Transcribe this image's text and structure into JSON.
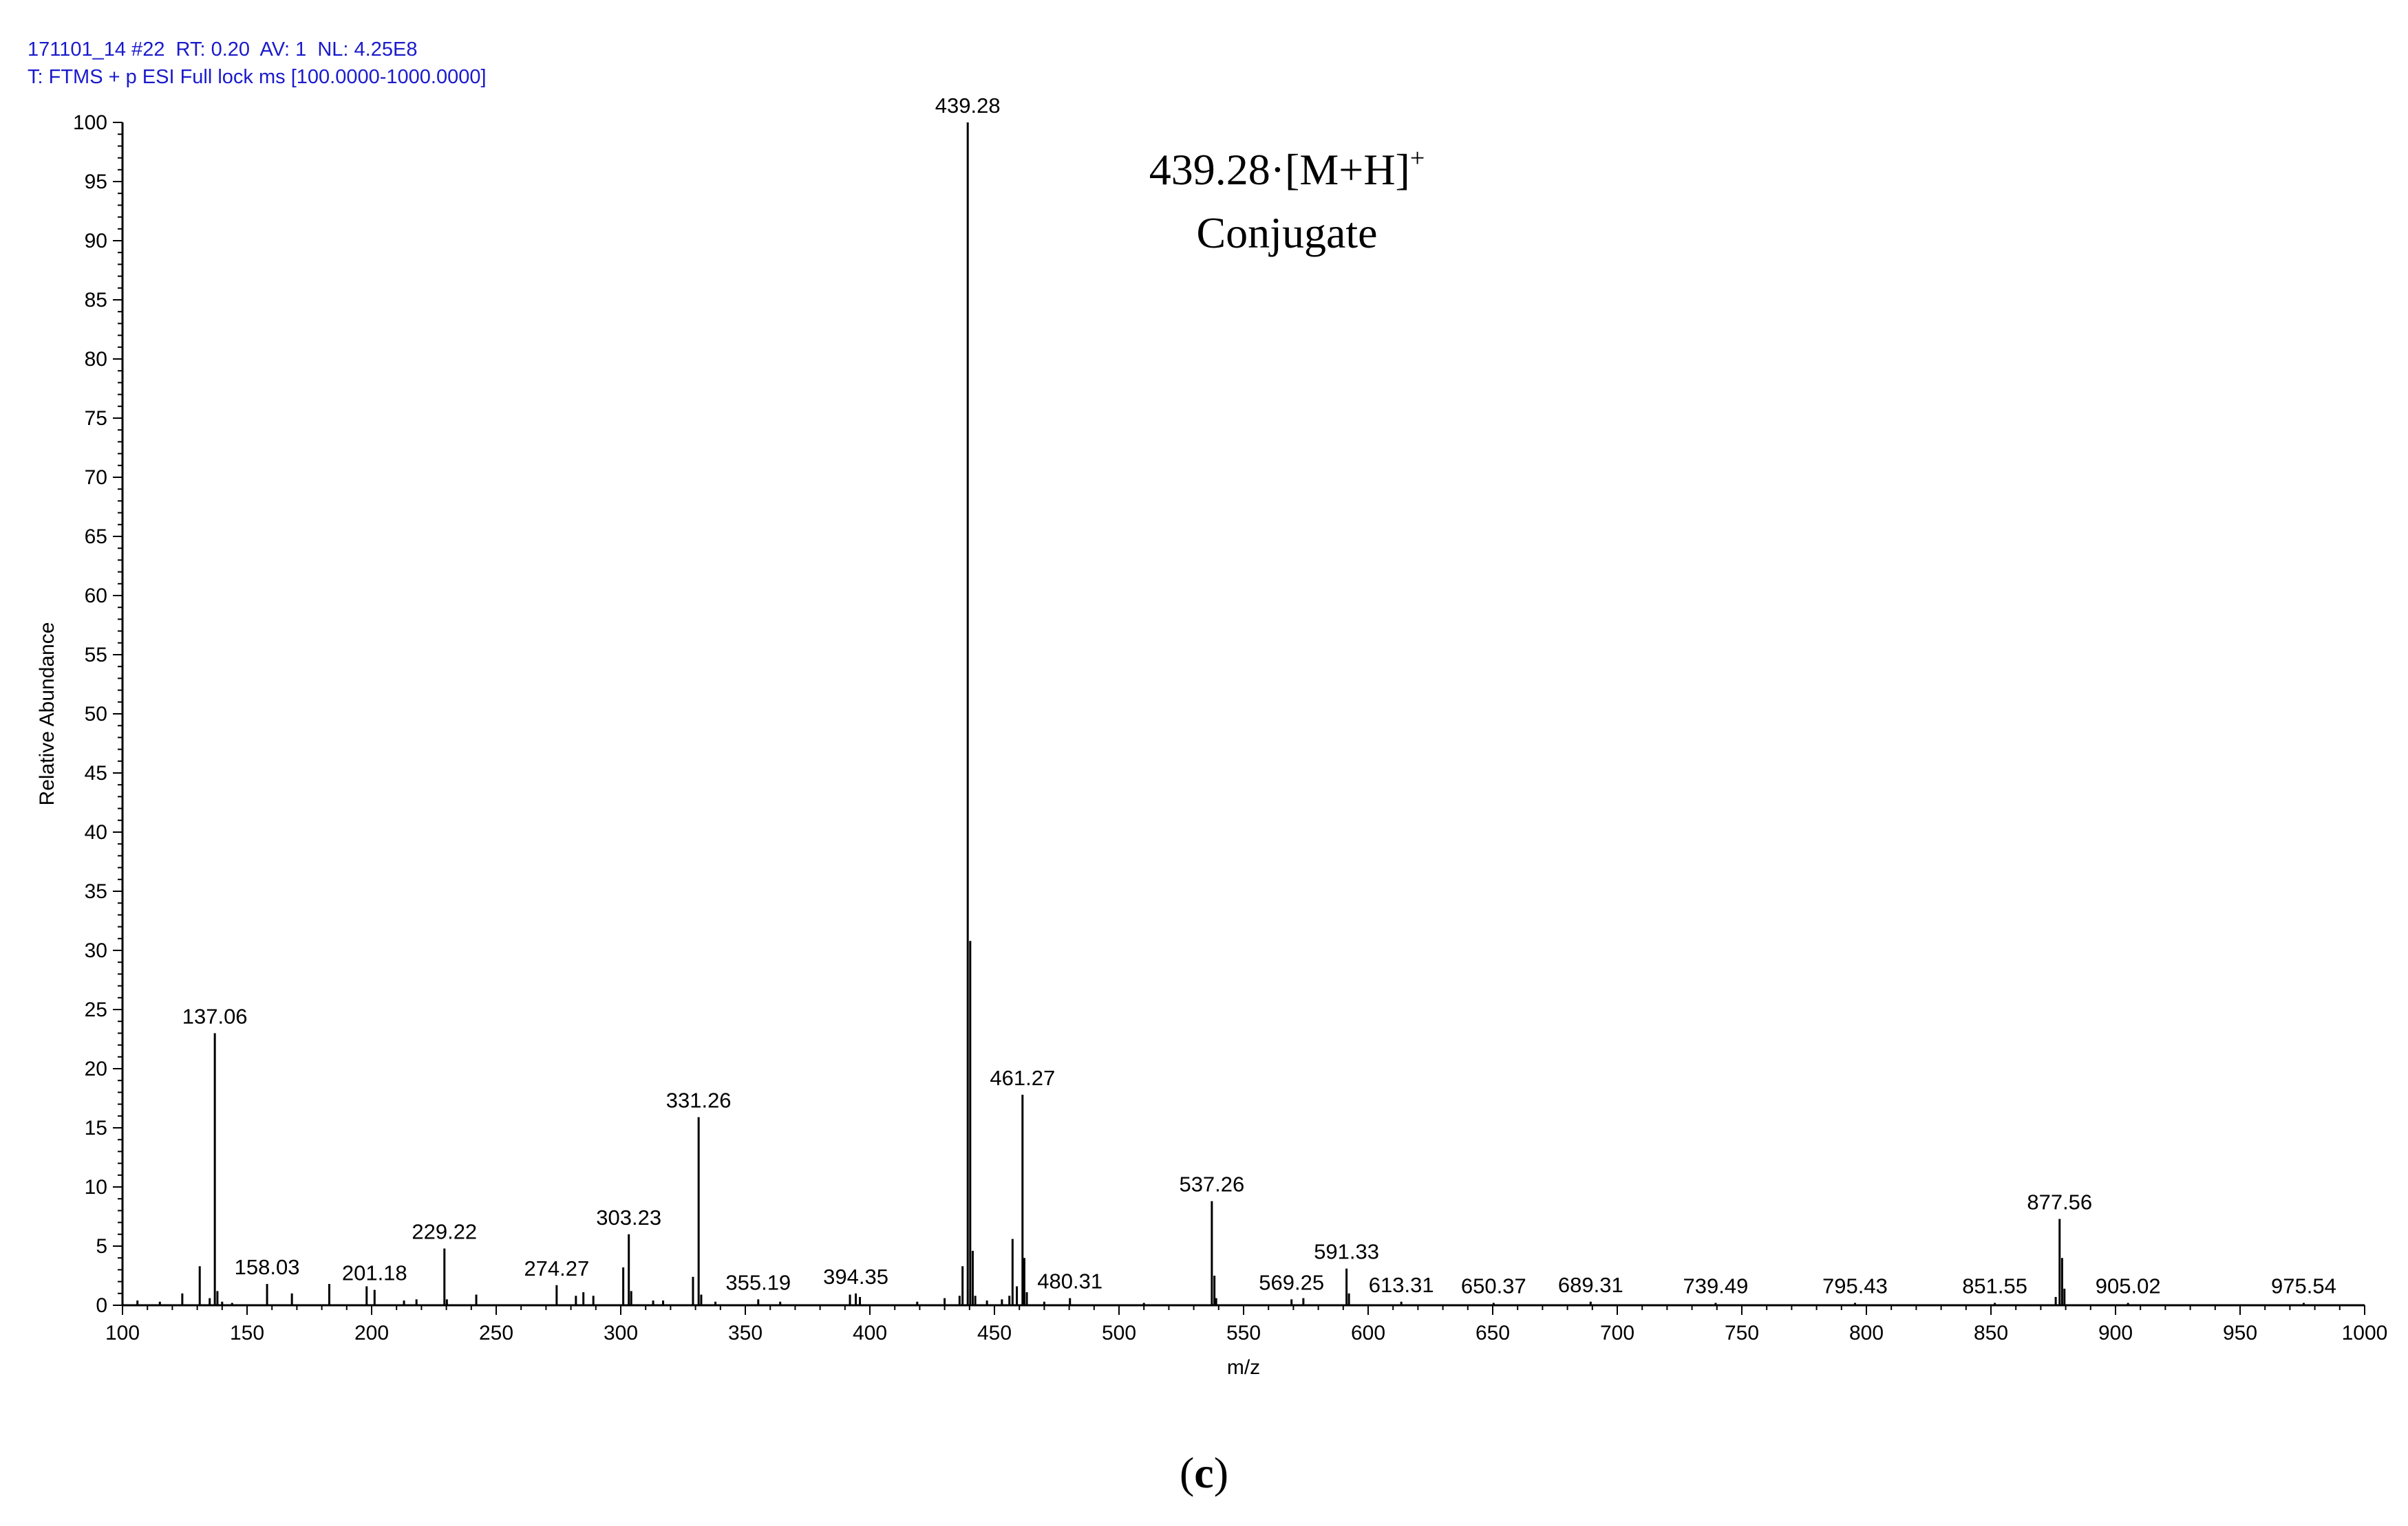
{
  "header": {
    "line1": "171101_14 #22  RT: 0.20  AV: 1  NL: 4.25E8",
    "line2": "T: FTMS + p ESI Full lock ms [100.0000-1000.0000]"
  },
  "panel": {
    "open": "(",
    "letter": "c",
    "close": ")"
  },
  "colors": {
    "header_text": "#1a1acc",
    "axis": "#000000",
    "peaks": "#000000"
  },
  "chart_data": {
    "type": "bar",
    "title": "",
    "xlabel": "m/z",
    "ylabel": "Relative Abundance",
    "xlim": [
      100,
      1000
    ],
    "ylim": [
      0,
      100
    ],
    "xticks": [
      100,
      150,
      200,
      250,
      300,
      350,
      400,
      450,
      500,
      550,
      600,
      650,
      700,
      750,
      800,
      850,
      900,
      950,
      1000
    ],
    "yticks": [
      0,
      5,
      10,
      15,
      20,
      25,
      30,
      35,
      40,
      45,
      50,
      55,
      60,
      65,
      70,
      75,
      80,
      85,
      90,
      95,
      100
    ],
    "annotation": {
      "line1": "439.28·[M+H]",
      "superscript": "+",
      "line2": "Conjugate"
    },
    "labeled_peaks": [
      {
        "mz": 137.06,
        "abundance": 23.0,
        "label": "137.06"
      },
      {
        "mz": 158.03,
        "abundance": 1.8,
        "label": "158.03"
      },
      {
        "mz": 201.18,
        "abundance": 1.3,
        "label": "201.18"
      },
      {
        "mz": 229.22,
        "abundance": 4.8,
        "label": "229.22"
      },
      {
        "mz": 274.27,
        "abundance": 1.7,
        "label": "274.27"
      },
      {
        "mz": 303.23,
        "abundance": 6.0,
        "label": "303.23"
      },
      {
        "mz": 331.26,
        "abundance": 15.9,
        "label": "331.26"
      },
      {
        "mz": 355.19,
        "abundance": 0.5,
        "label": "355.19"
      },
      {
        "mz": 394.35,
        "abundance": 1.0,
        "label": "394.35"
      },
      {
        "mz": 439.28,
        "abundance": 100.0,
        "label": "439.28"
      },
      {
        "mz": 461.27,
        "abundance": 17.8,
        "label": "461.27"
      },
      {
        "mz": 480.31,
        "abundance": 0.6,
        "label": "480.31"
      },
      {
        "mz": 537.26,
        "abundance": 8.8,
        "label": "537.26"
      },
      {
        "mz": 569.25,
        "abundance": 0.5,
        "label": "569.25"
      },
      {
        "mz": 591.33,
        "abundance": 3.1,
        "label": "591.33"
      },
      {
        "mz": 613.31,
        "abundance": 0.3,
        "label": "613.31"
      },
      {
        "mz": 650.37,
        "abundance": 0.2,
        "label": "650.37"
      },
      {
        "mz": 689.31,
        "abundance": 0.3,
        "label": "689.31"
      },
      {
        "mz": 739.49,
        "abundance": 0.2,
        "label": "739.49"
      },
      {
        "mz": 795.43,
        "abundance": 0.2,
        "label": "795.43"
      },
      {
        "mz": 851.55,
        "abundance": 0.2,
        "label": "851.55"
      },
      {
        "mz": 877.56,
        "abundance": 7.3,
        "label": "877.56"
      },
      {
        "mz": 905.02,
        "abundance": 0.2,
        "label": "905.02"
      },
      {
        "mz": 975.54,
        "abundance": 0.2,
        "label": "975.54"
      }
    ],
    "minor_peaks": [
      {
        "mz": 106.0,
        "abundance": 0.4
      },
      {
        "mz": 115.0,
        "abundance": 0.3
      },
      {
        "mz": 124.0,
        "abundance": 1.0
      },
      {
        "mz": 131.0,
        "abundance": 3.3
      },
      {
        "mz": 135.0,
        "abundance": 0.6
      },
      {
        "mz": 138.1,
        "abundance": 1.2
      },
      {
        "mz": 140.0,
        "abundance": 0.3
      },
      {
        "mz": 144.0,
        "abundance": 0.2
      },
      {
        "mz": 168.0,
        "abundance": 1.0
      },
      {
        "mz": 183.0,
        "abundance": 1.8
      },
      {
        "mz": 198.0,
        "abundance": 1.6
      },
      {
        "mz": 213.0,
        "abundance": 0.4
      },
      {
        "mz": 218.0,
        "abundance": 0.5
      },
      {
        "mz": 230.2,
        "abundance": 0.5
      },
      {
        "mz": 242.0,
        "abundance": 0.9
      },
      {
        "mz": 282.0,
        "abundance": 0.8
      },
      {
        "mz": 285.0,
        "abundance": 1.1
      },
      {
        "mz": 289.0,
        "abundance": 0.8
      },
      {
        "mz": 301.0,
        "abundance": 3.2
      },
      {
        "mz": 304.2,
        "abundance": 1.2
      },
      {
        "mz": 313.0,
        "abundance": 0.4
      },
      {
        "mz": 317.0,
        "abundance": 0.4
      },
      {
        "mz": 329.0,
        "abundance": 2.4
      },
      {
        "mz": 332.3,
        "abundance": 0.9
      },
      {
        "mz": 338.0,
        "abundance": 0.3
      },
      {
        "mz": 364.0,
        "abundance": 0.3
      },
      {
        "mz": 392.0,
        "abundance": 0.9
      },
      {
        "mz": 396.0,
        "abundance": 0.7
      },
      {
        "mz": 419.0,
        "abundance": 0.3
      },
      {
        "mz": 430.0,
        "abundance": 0.6
      },
      {
        "mz": 436.0,
        "abundance": 0.8
      },
      {
        "mz": 437.2,
        "abundance": 3.3
      },
      {
        "mz": 440.28,
        "abundance": 30.8
      },
      {
        "mz": 441.28,
        "abundance": 4.6
      },
      {
        "mz": 442.3,
        "abundance": 0.8
      },
      {
        "mz": 447.0,
        "abundance": 0.4
      },
      {
        "mz": 453.0,
        "abundance": 0.5
      },
      {
        "mz": 456.0,
        "abundance": 0.8
      },
      {
        "mz": 457.27,
        "abundance": 5.6
      },
      {
        "mz": 459.0,
        "abundance": 1.6
      },
      {
        "mz": 462.0,
        "abundance": 4.0
      },
      {
        "mz": 463.0,
        "abundance": 1.1
      },
      {
        "mz": 470.0,
        "abundance": 0.3
      },
      {
        "mz": 510.0,
        "abundance": 0.2
      },
      {
        "mz": 538.3,
        "abundance": 2.5
      },
      {
        "mz": 539.0,
        "abundance": 0.6
      },
      {
        "mz": 574.0,
        "abundance": 0.6
      },
      {
        "mz": 592.3,
        "abundance": 1.0
      },
      {
        "mz": 876.0,
        "abundance": 0.7
      },
      {
        "mz": 878.56,
        "abundance": 4.0
      },
      {
        "mz": 879.5,
        "abundance": 1.4
      }
    ]
  }
}
